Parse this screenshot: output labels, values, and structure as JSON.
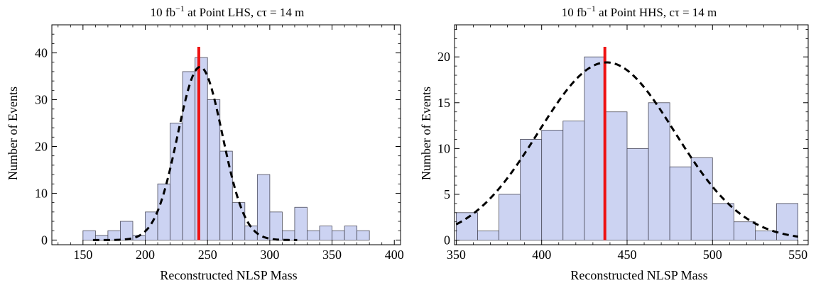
{
  "chart_data": [
    {
      "type": "bar",
      "title_prefix": "10 fb",
      "title_sup": "−1",
      "title_suffix": " at Point LHS, cτ = 14 m",
      "xlabel": "Reconstructed NLSP Mass",
      "ylabel": "Number of Events",
      "xlim": [
        125,
        405
      ],
      "ylim": [
        -1,
        46
      ],
      "xticks": [
        150,
        200,
        250,
        300,
        350,
        400
      ],
      "yticks": [
        0,
        10,
        20,
        30,
        40
      ],
      "bin_width": 10,
      "bins": [
        {
          "x0": 150,
          "value": 2
        },
        {
          "x0": 160,
          "value": 1
        },
        {
          "x0": 170,
          "value": 2
        },
        {
          "x0": 180,
          "value": 4
        },
        {
          "x0": 190,
          "value": 1
        },
        {
          "x0": 200,
          "value": 6
        },
        {
          "x0": 210,
          "value": 12
        },
        {
          "x0": 220,
          "value": 25
        },
        {
          "x0": 230,
          "value": 36
        },
        {
          "x0": 240,
          "value": 39
        },
        {
          "x0": 250,
          "value": 30
        },
        {
          "x0": 260,
          "value": 19
        },
        {
          "x0": 270,
          "value": 8
        },
        {
          "x0": 280,
          "value": 3
        },
        {
          "x0": 290,
          "value": 14
        },
        {
          "x0": 300,
          "value": 6
        },
        {
          "x0": 310,
          "value": 2
        },
        {
          "x0": 320,
          "value": 7
        },
        {
          "x0": 330,
          "value": 2
        },
        {
          "x0": 340,
          "value": 3
        },
        {
          "x0": 350,
          "value": 2
        },
        {
          "x0": 360,
          "value": 3
        },
        {
          "x0": 370,
          "value": 2
        }
      ],
      "fit": {
        "style": "dashed",
        "mean": 244,
        "sigma": 18,
        "amplitude": 37,
        "xrange": [
          158,
          322
        ]
      },
      "marker_line": {
        "x": 243,
        "color": "#ee1111"
      },
      "bar_fill": "#ccd3f2",
      "bar_stroke": "#4a4a5a"
    },
    {
      "type": "bar",
      "title_prefix": "10 fb",
      "title_sup": "−1",
      "title_suffix": " at Point HHS, cτ = 14 m",
      "xlabel": "Reconstructed NLSP Mass",
      "ylabel": "Number of Events",
      "xlim": [
        349,
        556
      ],
      "ylim": [
        -0.5,
        23.5
      ],
      "xticks": [
        350,
        400,
        450,
        500,
        550
      ],
      "yticks": [
        0,
        5,
        10,
        15,
        20
      ],
      "bin_width": 12.5,
      "bins": [
        {
          "x0": 350,
          "value": 3
        },
        {
          "x0": 362.5,
          "value": 1
        },
        {
          "x0": 375,
          "value": 5
        },
        {
          "x0": 387.5,
          "value": 11
        },
        {
          "x0": 400,
          "value": 12
        },
        {
          "x0": 412.5,
          "value": 13
        },
        {
          "x0": 425,
          "value": 20
        },
        {
          "x0": 437.5,
          "value": 14
        },
        {
          "x0": 450,
          "value": 10
        },
        {
          "x0": 462.5,
          "value": 15
        },
        {
          "x0": 475,
          "value": 8
        },
        {
          "x0": 487.5,
          "value": 9
        },
        {
          "x0": 500,
          "value": 4
        },
        {
          "x0": 512.5,
          "value": 2
        },
        {
          "x0": 525,
          "value": 1
        },
        {
          "x0": 537.5,
          "value": 4
        }
      ],
      "fit": {
        "style": "dashed",
        "mean": 438,
        "sigma": 40,
        "amplitude": 19.4,
        "xrange": [
          350,
          550
        ]
      },
      "marker_line": {
        "x": 437,
        "color": "#ee1111"
      },
      "bar_fill": "#ccd3f2",
      "bar_stroke": "#4a4a5a"
    }
  ]
}
